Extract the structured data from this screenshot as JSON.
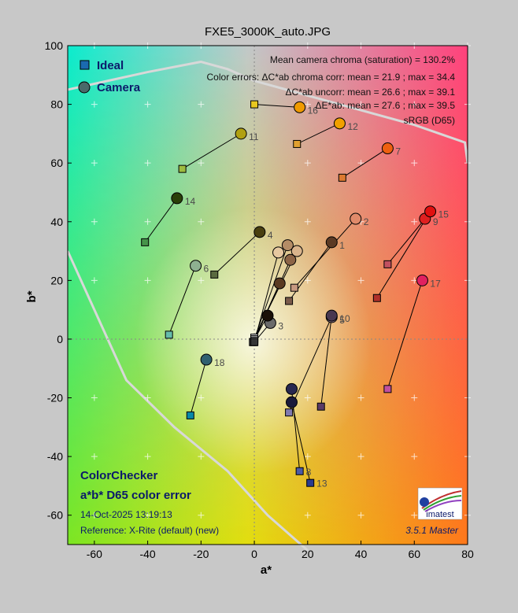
{
  "title": "FXE5_3000K_auto.JPG",
  "legend": {
    "ideal": "Ideal",
    "camera": "Camera"
  },
  "info": [
    "Mean camera chroma (saturation) = 130.2%",
    "Color errors: ΔC*ab chroma corr:  mean = 21.9 ;  max = 34.4",
    "ΔC*ab uncorr:  mean = 26.6 ;  max = 39.1",
    "ΔE*ab:  mean = 27.6 ;  max = 39.5",
    "sRGB (D65)"
  ],
  "footer": {
    "line1": "ColorChecker",
    "line2": "a*b* D65 color error",
    "date": "14-Oct-2025 13:19:13",
    "reference": "Reference: X-Rite (default) (new)",
    "version": "3.5.1  Master",
    "logo": "imatest"
  },
  "chart_data": {
    "type": "scatter",
    "xlabel": "a*",
    "ylabel": "b*",
    "xlim": [
      -70,
      80
    ],
    "ylim": [
      -70,
      100
    ],
    "xticks": [
      -60,
      -40,
      -20,
      0,
      20,
      40,
      60,
      80
    ],
    "yticks": [
      -60,
      -40,
      -20,
      0,
      20,
      40,
      60,
      80,
      100
    ],
    "grid": true,
    "legend_position": "top-left",
    "series": [
      {
        "name": "Ideal",
        "marker": "square"
      },
      {
        "name": "Camera",
        "marker": "circle"
      }
    ],
    "patches": [
      {
        "id": "1",
        "ideal": [
          13,
          13
        ],
        "camera": [
          29,
          33
        ],
        "ideal_color": "#7a5a4a",
        "camera_color": "#5c3a24"
      },
      {
        "id": "2",
        "ideal": [
          15,
          17.5
        ],
        "camera": [
          38,
          41
        ],
        "ideal_color": "#c69880",
        "camera_color": "#e08a6a"
      },
      {
        "id": "3",
        "ideal": [
          0,
          -1
        ],
        "camera": [
          6,
          5.5
        ],
        "ideal_color": "#4a4a4a",
        "camera_color": "#6a6a6a"
      },
      {
        "id": "4",
        "ideal": [
          -15,
          22
        ],
        "camera": [
          2,
          36.5
        ],
        "ideal_color": "#5a6a40",
        "camera_color": "#4a4010"
      },
      {
        "id": "5",
        "ideal": [
          13,
          -25
        ],
        "camera": [
          29,
          7.5
        ],
        "ideal_color": "#807ab0",
        "camera_color": "#8a7488"
      },
      {
        "id": "6",
        "ideal": [
          -32,
          1.5
        ],
        "camera": [
          -22,
          25
        ],
        "ideal_color": "#66bcaa",
        "camera_color": "#8eb090"
      },
      {
        "id": "7",
        "ideal": [
          33,
          55
        ],
        "camera": [
          50,
          65
        ],
        "ideal_color": "#dc7a30",
        "camera_color": "#ee6010"
      },
      {
        "id": "8",
        "ideal": [
          17,
          -45
        ],
        "camera": [
          14,
          -17
        ],
        "ideal_color": "#4a5aa8",
        "camera_color": "#282850"
      },
      {
        "id": "9",
        "ideal": [
          50,
          25.5
        ],
        "camera": [
          64,
          41
        ],
        "ideal_color": "#c25060",
        "camera_color": "#e02020"
      },
      {
        "id": "10",
        "ideal": [
          25,
          -23
        ],
        "camera": [
          29,
          8
        ],
        "ideal_color": "#5a3a66",
        "camera_color": "#483850"
      },
      {
        "id": "11",
        "ideal": [
          -27,
          58
        ],
        "camera": [
          -5,
          70
        ],
        "ideal_color": "#9ebc40",
        "camera_color": "#b0a010"
      },
      {
        "id": "12",
        "ideal": [
          16,
          66.5
        ],
        "camera": [
          32,
          73.5
        ],
        "ideal_color": "#e0a030",
        "camera_color": "#f0a000"
      },
      {
        "id": "13",
        "ideal": [
          21,
          -49
        ],
        "camera": [
          14,
          -21.5
        ],
        "ideal_color": "#2a3a90",
        "camera_color": "#1a1a3a"
      },
      {
        "id": "14",
        "ideal": [
          -41,
          33
        ],
        "camera": [
          -29,
          48
        ],
        "ideal_color": "#46944a",
        "camera_color": "#2a4008"
      },
      {
        "id": "15",
        "ideal": [
          46,
          14
        ],
        "camera": [
          66,
          43.5
        ],
        "ideal_color": "#b0302a",
        "camera_color": "#e01010"
      },
      {
        "id": "16",
        "ideal": [
          0,
          80
        ],
        "camera": [
          17,
          79
        ],
        "ideal_color": "#e8c820",
        "camera_color": "#f09a00"
      },
      {
        "id": "17",
        "ideal": [
          50,
          -17
        ],
        "camera": [
          63,
          20
        ],
        "ideal_color": "#c050a0",
        "camera_color": "#e02060"
      },
      {
        "id": "18",
        "ideal": [
          -24,
          -26
        ],
        "camera": [
          -18,
          -7
        ],
        "ideal_color": "#0888a8",
        "camera_color": "#306070"
      },
      {
        "id": "19",
        "ideal": [
          0,
          0.5
        ],
        "camera": [
          16,
          30
        ],
        "ideal_color": "#f2f2f2",
        "camera_color": "#d9b48c"
      },
      {
        "id": "20",
        "ideal": [
          0,
          0
        ],
        "camera": [
          12.5,
          32
        ],
        "ideal_color": "#c8c8c8",
        "camera_color": "#b48c66"
      },
      {
        "id": "21",
        "ideal": [
          0,
          -0.5
        ],
        "camera": [
          13.5,
          27
        ],
        "ideal_color": "#a0a0a0",
        "camera_color": "#8c6446"
      },
      {
        "id": "22",
        "ideal": [
          -0.5,
          -1
        ],
        "camera": [
          9.5,
          19
        ],
        "ideal_color": "#7a7a7a",
        "camera_color": "#5a3a22"
      },
      {
        "id": "23",
        "ideal": [
          -0.5,
          -1
        ],
        "camera": [
          5,
          8
        ],
        "ideal_color": "#555555",
        "camera_color": "#1a1008"
      },
      {
        "id": "24",
        "ideal": [
          0,
          -1
        ],
        "camera": [
          9,
          29.5
        ],
        "ideal_color": "#363636",
        "camera_color": "#e6c8a0"
      }
    ]
  }
}
